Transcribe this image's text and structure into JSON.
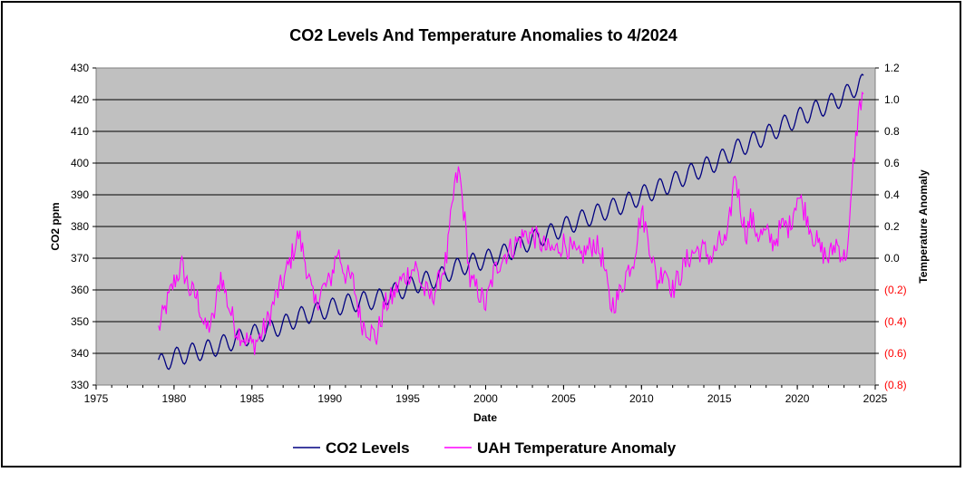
{
  "chart_data": {
    "type": "line",
    "title": "CO2 Levels And Temperature Anomalies to 4/2024",
    "xlabel": "Date",
    "ylabel_left": "CO2 ppm",
    "ylabel_right": "Temperature Anomaly",
    "xlim": [
      1975,
      2025
    ],
    "ylim_left": [
      330,
      430
    ],
    "ylim_right": [
      -0.8,
      1.2
    ],
    "x_ticks": [
      "1975",
      "1980",
      "1985",
      "1990",
      "1995",
      "2000",
      "2005",
      "2010",
      "2015",
      "2020",
      "2025"
    ],
    "y_left_ticks": [
      "330",
      "340",
      "350",
      "360",
      "370",
      "380",
      "390",
      "400",
      "410",
      "420",
      "430"
    ],
    "y_right_ticks": [
      {
        "label": "(0.8)",
        "value": -0.8,
        "negative": true
      },
      {
        "label": "(0.6)",
        "value": -0.6,
        "negative": true
      },
      {
        "label": "(0.4)",
        "value": -0.4,
        "negative": true
      },
      {
        "label": "(0.2)",
        "value": -0.2,
        "negative": true
      },
      {
        "label": "0.0",
        "value": 0.0,
        "negative": false
      },
      {
        "label": "0.2",
        "value": 0.2,
        "negative": false
      },
      {
        "label": "0.4",
        "value": 0.4,
        "negative": false
      },
      {
        "label": "0.6",
        "value": 0.6,
        "negative": false
      },
      {
        "label": "0.8",
        "value": 0.8,
        "negative": false
      },
      {
        "label": "1.0",
        "value": 1.0,
        "negative": false
      },
      {
        "label": "1.2",
        "value": 1.2,
        "negative": false
      }
    ],
    "grid": "horizontal",
    "legend_position": "bottom",
    "colors": {
      "plot_background": "#c0c0c0",
      "co2": "#000080",
      "temperature": "#ff00ff",
      "negative_tick": "#ff0000"
    },
    "series": [
      {
        "name": "CO2 Levels",
        "axis": "left",
        "x": [
          1979.0,
          1980.0,
          1981.0,
          1982.0,
          1983.0,
          1984.0,
          1985.0,
          1986.0,
          1987.0,
          1988.0,
          1989.0,
          1990.0,
          1991.0,
          1992.0,
          1993.0,
          1994.0,
          1995.0,
          1996.0,
          1997.0,
          1998.0,
          1999.0,
          2000.0,
          2001.0,
          2002.0,
          2003.0,
          2004.0,
          2005.0,
          2006.0,
          2007.0,
          2008.0,
          2009.0,
          2010.0,
          2011.0,
          2012.0,
          2013.0,
          2014.0,
          2015.0,
          2016.0,
          2017.0,
          2018.0,
          2019.0,
          2020.0,
          2021.0,
          2022.0,
          2023.0,
          2024.0
        ],
        "y": [
          336.5,
          338.7,
          340.1,
          341.0,
          342.6,
          344.4,
          345.9,
          347.2,
          348.9,
          351.5,
          352.9,
          354.2,
          355.6,
          356.4,
          357.0,
          358.9,
          360.9,
          362.7,
          363.8,
          366.7,
          368.4,
          369.6,
          371.1,
          373.3,
          375.8,
          377.5,
          379.8,
          381.9,
          383.8,
          385.6,
          387.4,
          389.9,
          391.7,
          393.9,
          396.5,
          398.6,
          400.8,
          404.2,
          406.5,
          408.7,
          411.7,
          414.2,
          416.4,
          418.5,
          421.1,
          425.0
        ],
        "seasonal_amplitude": 3.0
      },
      {
        "name": "UAH Temperature Anomaly",
        "axis": "right",
        "x": [
          1979.0,
          1979.5,
          1980.0,
          1980.5,
          1981.0,
          1981.5,
          1982.0,
          1982.5,
          1983.0,
          1983.5,
          1984.0,
          1984.5,
          1985.0,
          1985.5,
          1986.0,
          1986.5,
          1987.0,
          1987.5,
          1988.0,
          1988.5,
          1989.0,
          1989.5,
          1990.0,
          1990.5,
          1991.0,
          1991.5,
          1992.0,
          1992.5,
          1993.0,
          1993.5,
          1994.0,
          1994.5,
          1995.0,
          1995.5,
          1996.0,
          1996.5,
          1997.0,
          1997.5,
          1998.0,
          1998.3,
          1998.7,
          1999.0,
          1999.5,
          2000.0,
          2000.5,
          2001.0,
          2001.5,
          2002.0,
          2002.5,
          2003.0,
          2003.5,
          2004.0,
          2004.5,
          2005.0,
          2005.5,
          2006.0,
          2006.5,
          2007.0,
          2007.5,
          2008.0,
          2008.5,
          2009.0,
          2009.5,
          2010.0,
          2010.5,
          2011.0,
          2011.5,
          2012.0,
          2012.5,
          2013.0,
          2013.5,
          2014.0,
          2014.5,
          2015.0,
          2015.5,
          2016.0,
          2016.3,
          2016.7,
          2017.0,
          2017.5,
          2018.0,
          2018.5,
          2019.0,
          2019.5,
          2020.0,
          2020.5,
          2021.0,
          2021.5,
          2022.0,
          2022.5,
          2023.0,
          2023.3,
          2023.6,
          2023.9,
          2024.2
        ],
        "y": [
          -0.45,
          -0.3,
          -0.15,
          -0.05,
          -0.2,
          -0.25,
          -0.45,
          -0.4,
          -0.1,
          -0.3,
          -0.45,
          -0.5,
          -0.55,
          -0.5,
          -0.4,
          -0.25,
          -0.15,
          0.0,
          0.15,
          -0.05,
          -0.3,
          -0.2,
          -0.15,
          0.05,
          -0.1,
          -0.15,
          -0.4,
          -0.45,
          -0.5,
          -0.3,
          -0.25,
          -0.15,
          -0.1,
          -0.05,
          -0.2,
          -0.25,
          -0.15,
          0.0,
          0.45,
          0.55,
          0.2,
          -0.15,
          -0.2,
          -0.3,
          -0.1,
          0.0,
          0.05,
          0.1,
          0.15,
          0.15,
          0.1,
          0.05,
          0.05,
          0.1,
          0.05,
          0.0,
          0.05,
          0.1,
          0.0,
          -0.3,
          -0.25,
          -0.1,
          0.0,
          0.3,
          0.1,
          -0.15,
          -0.05,
          -0.2,
          -0.1,
          0.0,
          0.05,
          0.05,
          0.0,
          0.1,
          0.1,
          0.55,
          0.35,
          0.15,
          0.25,
          0.15,
          0.15,
          0.1,
          0.2,
          0.2,
          0.4,
          0.3,
          0.15,
          0.05,
          0.0,
          0.1,
          0.0,
          0.1,
          0.6,
          0.9,
          1.05
        ],
        "noise_amplitude": 0.08
      }
    ]
  }
}
